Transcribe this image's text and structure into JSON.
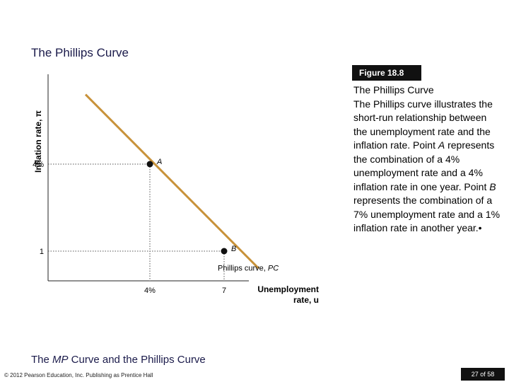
{
  "slide": {
    "title": "The Phillips Curve",
    "footer_title_pre": "The ",
    "footer_title_em": "MP",
    "footer_title_post": " Curve and the Phillips Curve",
    "copyright": "© 2012 Pearson Education, Inc. Publishing as Prentice Hall",
    "page": "27 of 58"
  },
  "figure": {
    "badge": "Figure 18.8",
    "caption_title": "The Phillips Curve",
    "caption_parts": [
      {
        "text": "The Phillips curve illustrates the short-run relationship between the unemployment rate and the inflation rate. Point "
      },
      {
        "text": "A",
        "italic": true
      },
      {
        "text": " represents the combination of a 4% unemployment rate and a 4% inflation rate in one year. Point "
      },
      {
        "text": "B",
        "italic": true
      },
      {
        "text": " represents the combination of a 7% unemployment rate and a 1% inflation rate in another year."
      }
    ],
    "bullet": "•"
  },
  "chart_data": {
    "type": "line",
    "x": [
      1.4,
      8.4
    ],
    "xlabel": "Unemployment rate, u",
    "ylabel": "Inflation rate, π",
    "x_ticks": [
      {
        "value": 4,
        "label": "4%"
      },
      {
        "value": 7,
        "label": "7"
      }
    ],
    "y_ticks": [
      {
        "value": 4,
        "label": "4%"
      },
      {
        "value": 1,
        "label": "1"
      }
    ],
    "series": [
      {
        "name": "Phillips curve, PC",
        "points": [
          [
            1.4,
            6.4
          ],
          [
            8.4,
            0.4
          ]
        ]
      }
    ],
    "points": [
      {
        "label": "A",
        "x": 4,
        "y": 4
      },
      {
        "label": "B",
        "x": 7,
        "y": 1
      }
    ],
    "colors": {
      "curve": "#c8923a",
      "point": "#111111"
    },
    "grid": false,
    "legend": "none"
  }
}
